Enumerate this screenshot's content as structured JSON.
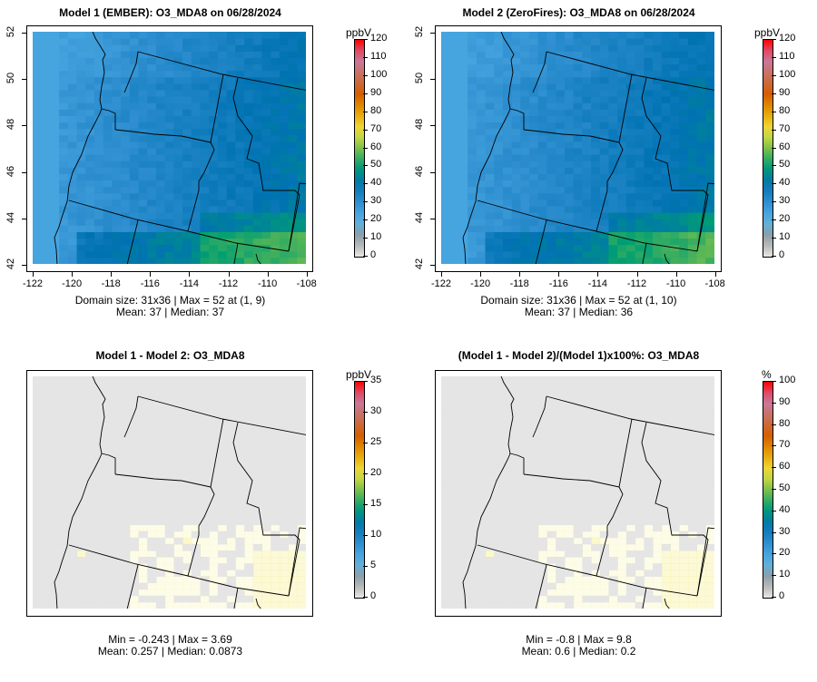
{
  "chart_data": [
    {
      "type": "heatmap",
      "title": "Model 1 (EMBER): O3_MDA8 on 06/28/2024",
      "unit": "ppbV",
      "xticks": [
        -122,
        -120,
        -118,
        -116,
        -114,
        -112,
        -110,
        -108
      ],
      "yticks": [
        42,
        44,
        46,
        48,
        50,
        52
      ],
      "xlim": [
        -122,
        -108
      ],
      "ylim": [
        42,
        52
      ],
      "cbar_ticks": [
        0,
        10,
        20,
        30,
        40,
        50,
        60,
        70,
        80,
        90,
        100,
        110,
        120
      ],
      "cbar_range": [
        0,
        120
      ],
      "stats1": "Domain size: 31x36 | Max = 52 at (1, 9)",
      "stats2": "Mean: 37 |  Median: 37",
      "domain": [
        31,
        36
      ],
      "max": 52,
      "mean": 37,
      "median": 37
    },
    {
      "type": "heatmap",
      "title": "Model 2 (ZeroFires): O3_MDA8 on 06/28/2024",
      "unit": "ppbV",
      "xticks": [
        -122,
        -120,
        -118,
        -116,
        -114,
        -112,
        -110,
        -108
      ],
      "yticks": [
        42,
        44,
        46,
        48,
        50,
        52
      ],
      "xlim": [
        -122,
        -108
      ],
      "ylim": [
        42,
        52
      ],
      "cbar_ticks": [
        0,
        10,
        20,
        30,
        40,
        50,
        60,
        70,
        80,
        90,
        100,
        110,
        120
      ],
      "cbar_range": [
        0,
        120
      ],
      "stats1": "Domain size: 31x36 | Max = 52 at (1, 10)",
      "stats2": "Mean: 37 |  Median: 36",
      "domain": [
        31,
        36
      ],
      "max": 52,
      "mean": 37,
      "median": 36
    },
    {
      "type": "heatmap",
      "title": "Model 1 - Model 2: O3_MDA8",
      "unit": "ppbV",
      "cbar_ticks": [
        0,
        5,
        10,
        15,
        20,
        25,
        30,
        35
      ],
      "cbar_range": [
        0,
        35
      ],
      "stats1": "Min = -0.243 | Max = 3.69",
      "stats2": "Mean: 0.257 |  Median: 0.0873",
      "min": -0.243,
      "max": 3.69,
      "mean": 0.257,
      "median": 0.0873
    },
    {
      "type": "heatmap",
      "title": "(Model 1 - Model 2)/(Model 1)x100%: O3_MDA8",
      "unit": "%",
      "cbar_ticks": [
        0,
        10,
        20,
        30,
        40,
        50,
        60,
        70,
        80,
        90,
        100
      ],
      "cbar_range": [
        0,
        100
      ],
      "stats1": "Min = -0.8 | Max = 9.8",
      "stats2": "Mean: 0.6 |  Median: 0.2",
      "min": -0.8,
      "max": 9.8,
      "mean": 0.6,
      "median": 0.2
    }
  ],
  "colors": {
    "scale": [
      "#e8e8e8",
      "#9a9a9a",
      "#56b4e9",
      "#2f8fd0",
      "#0072b2",
      "#009e73",
      "#7cc04a",
      "#f0e442",
      "#e69f00",
      "#d55e00",
      "#c8705a",
      "#cc79a7",
      "#ff0000"
    ],
    "diff_bg": "#e5e5e5"
  }
}
